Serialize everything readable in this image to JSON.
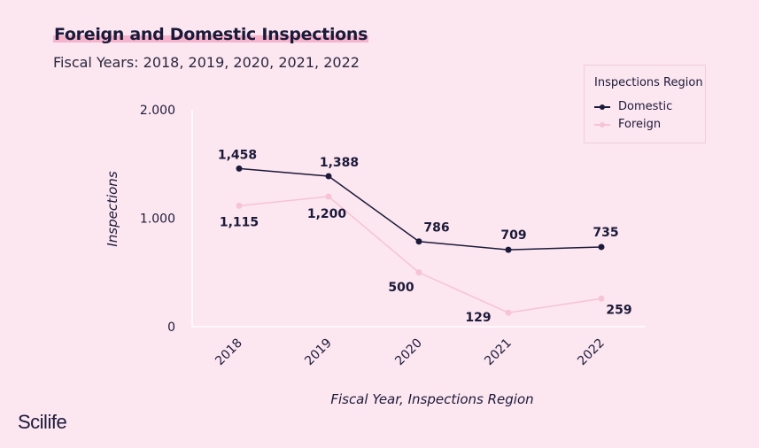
{
  "chart_data": {
    "type": "line",
    "title": "Foreign and Domestic Inspections",
    "subtitle": "Fiscal Years: 2018, 2019, 2020, 2021, 2022",
    "xlabel": "Fiscal Year, Inspections Region",
    "ylabel": "Inspections",
    "categories": [
      "2018",
      "2019",
      "2020",
      "2021",
      "2022"
    ],
    "y_ticks": [
      0,
      1000,
      2000
    ],
    "y_tick_labels": [
      "0",
      "1.000",
      "2.000"
    ],
    "ylim": [
      0,
      2000
    ],
    "legend_title": "Inspections Region",
    "legend_position": "top-right",
    "grid": false,
    "series": [
      {
        "name": "Domestic",
        "color": "#1c1a3b",
        "values": [
          1458,
          1388,
          786,
          709,
          735
        ],
        "labels": [
          "1,458",
          "1,388",
          "786",
          "709",
          "735"
        ]
      },
      {
        "name": "Foreign",
        "color": "#f6c4d4",
        "values": [
          1115,
          1200,
          500,
          129,
          259
        ],
        "labels": [
          "1,115",
          "1,200",
          "500",
          "129",
          "259"
        ]
      }
    ]
  },
  "brand": "Scilife"
}
